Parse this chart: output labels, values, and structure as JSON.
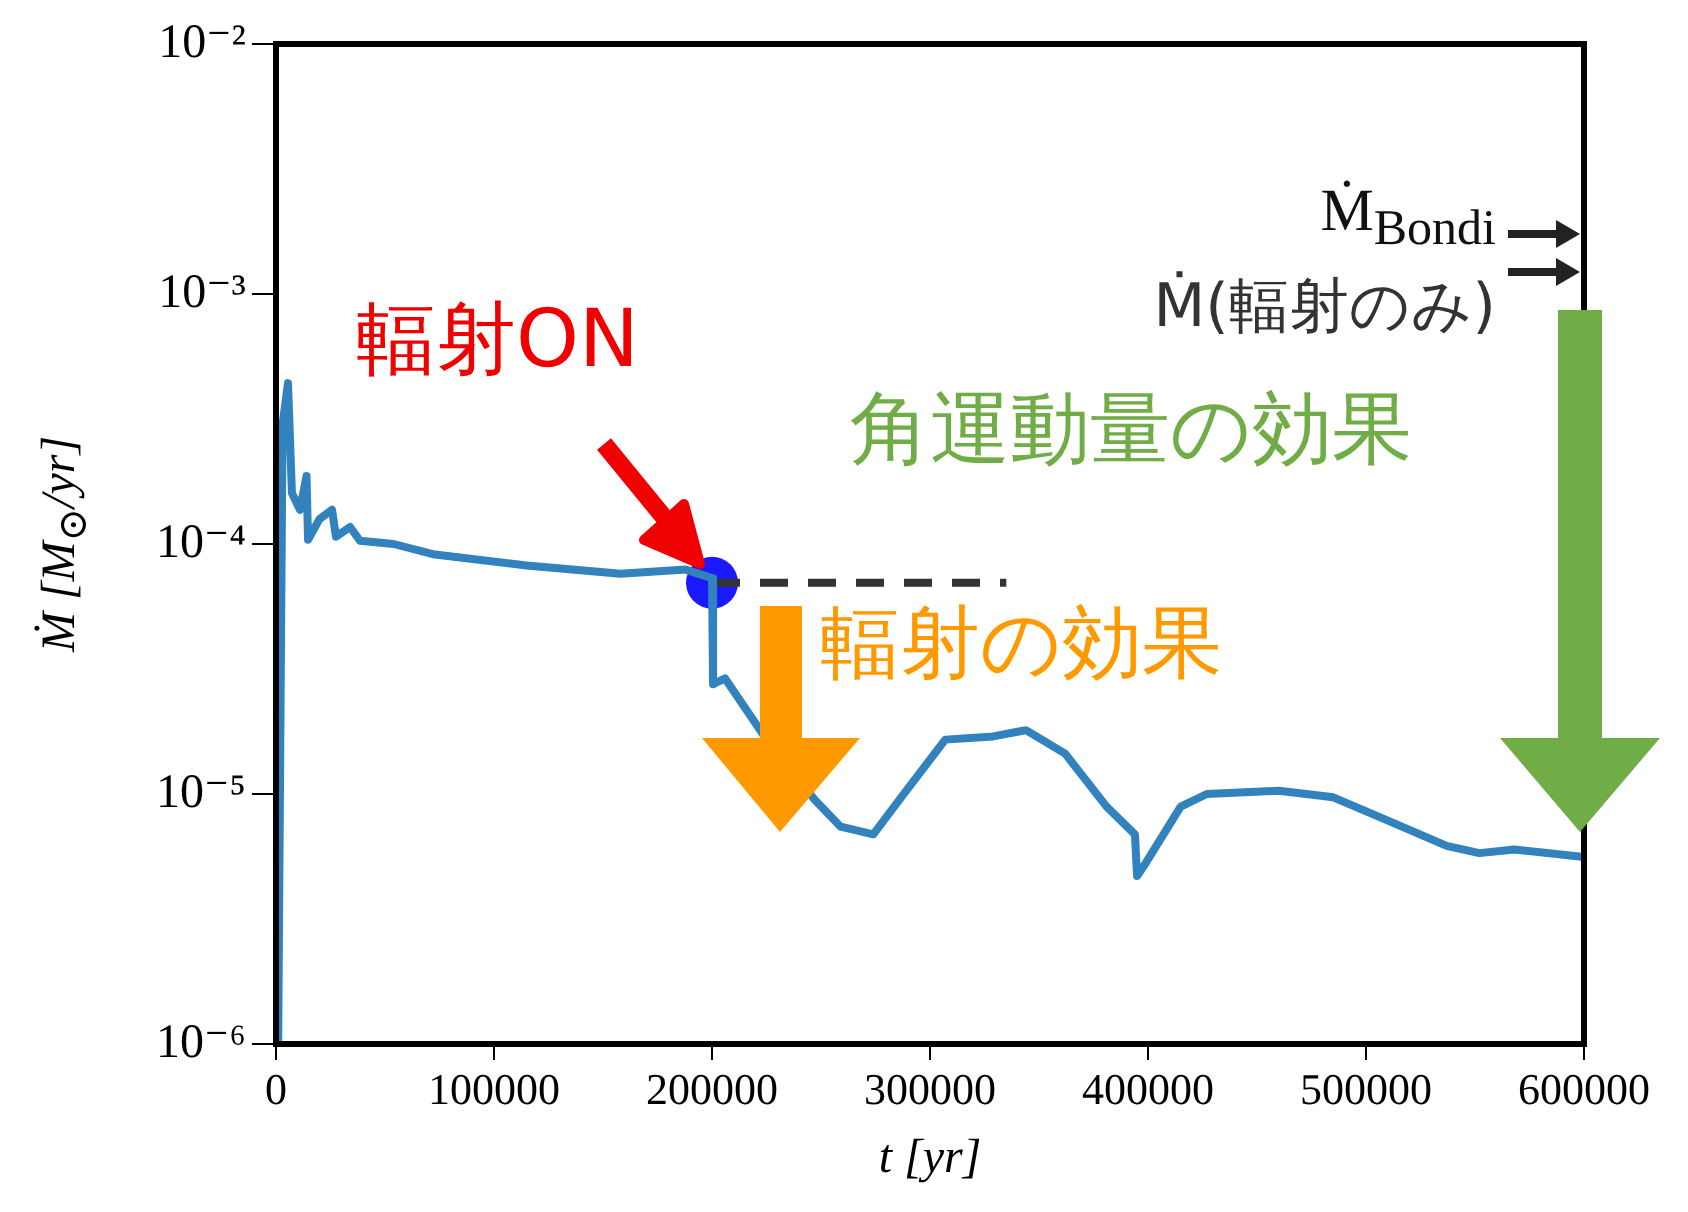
{
  "chart_data": {
    "type": "line",
    "xlabel": "t [yr]",
    "ylabel": "Ṁ [M$_{⊙}$/yr]",
    "log": "y",
    "grid": false,
    "legend": false,
    "xlim": [
      0,
      600000
    ],
    "xticks": [
      0,
      100000,
      200000,
      300000,
      400000,
      500000,
      600000
    ],
    "ylim": [
      1e-06,
      0.01
    ],
    "yticks": [
      {
        "value": 1e-06,
        "label": "10⁻⁶"
      },
      {
        "value": 1e-05,
        "label": "10⁻⁵"
      },
      {
        "value": 0.0001,
        "label": "10⁻⁴"
      },
      {
        "value": 0.001,
        "label": "10⁻³"
      },
      {
        "value": 0.01,
        "label": "10⁻²"
      }
    ],
    "annotations": [
      "輻射ON",
      "輻射の効果",
      "角運動量の効果",
      "Ṁ$_{Bondi}$",
      "Ṁ(輻射のみ)"
    ],
    "series": [
      {
        "color": "#3182bd",
        "marker": "none",
        "line_style": "solid",
        "x": [
          0,
          1000,
          3000,
          5500,
          7300,
          11000,
          14000,
          14700,
          20000,
          25700,
          27500,
          34000,
          38500,
          54000,
          72000,
          115000,
          158000,
          188000,
          200000,
          200500,
          206000,
          225000,
          247000,
          259000,
          274000,
          286000,
          307000,
          329000,
          344000,
          362000,
          381000,
          394000,
          395000,
          399000,
          415000,
          427000,
          460000,
          485000,
          509000,
          537000,
          552000,
          568000,
          600000
        ],
        "values": [
          1e-06,
          1e-06,
          0.0003,
          0.00044,
          0.00016,
          0.000137,
          0.000187,
          0.000104,
          0.000126,
          0.000137,
          0.000107,
          0.000117,
          0.000103,
          0.0001,
          9.1e-05,
          8.2e-05,
          7.6e-05,
          7.9e-05,
          7.3e-05,
          2.75e-05,
          2.9e-05,
          1.65e-05,
          9.5e-06,
          7.4e-06,
          6.9e-06,
          9.5e-06,
          1.65e-05,
          1.7e-05,
          1.8e-05,
          1.45e-05,
          8.9e-06,
          6.9e-06,
          4.7e-06,
          5.3e-06,
          8.9e-06,
          1e-05,
          1.03e-05,
          9.7e-06,
          7.9e-06,
          6.2e-06,
          5.8e-06,
          6e-06,
          5.6e-06
        ]
      },
      {
        "type": "line",
        "color": "#333333",
        "marker": "none",
        "line_style": "dashed",
        "x": [
          200000,
          335000
        ],
        "values": [
          7e-05,
          7e-05
        ]
      },
      {
        "type": "scatter",
        "color": "#1a1aff",
        "marker": "circle",
        "x": [
          200000
        ],
        "values": [
          7e-05
        ]
      }
    ]
  }
}
